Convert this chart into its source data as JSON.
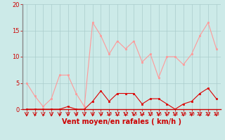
{
  "hours": [
    0,
    1,
    2,
    3,
    4,
    5,
    6,
    7,
    8,
    9,
    10,
    11,
    12,
    13,
    14,
    15,
    16,
    17,
    18,
    19,
    20,
    21,
    22,
    23
  ],
  "rafales": [
    5.0,
    2.5,
    0.5,
    2.0,
    6.5,
    6.5,
    3.0,
    0.5,
    16.5,
    14.0,
    10.5,
    13.0,
    11.5,
    13.0,
    9.0,
    10.5,
    6.0,
    10.0,
    10.0,
    8.5,
    10.5,
    14.0,
    16.5,
    11.5
  ],
  "moyen": [
    0.0,
    0.0,
    0.0,
    0.0,
    0.0,
    0.5,
    0.0,
    0.0,
    1.5,
    3.5,
    1.5,
    3.0,
    3.0,
    3.0,
    1.0,
    2.0,
    2.0,
    1.0,
    0.0,
    1.0,
    1.5,
    3.0,
    4.0,
    2.0
  ],
  "bg_color": "#cceae8",
  "grid_color": "#aacccc",
  "rafales_color": "#ff9999",
  "moyen_color": "#dd0000",
  "spine_color": "#888888",
  "tick_color": "#cc0000",
  "xlabel": "Vent moyen/en rafales ( km/h )",
  "ylim": [
    0,
    20
  ],
  "xlim_min": -0.5,
  "xlim_max": 23.5,
  "yticks": [
    0,
    5,
    10,
    15,
    20
  ],
  "xticks": [
    0,
    1,
    2,
    3,
    4,
    5,
    6,
    7,
    8,
    9,
    10,
    11,
    12,
    13,
    14,
    15,
    16,
    17,
    18,
    19,
    20,
    21,
    22,
    23
  ],
  "xlabel_fontsize": 7,
  "ytick_fontsize": 6,
  "xtick_fontsize": 5
}
